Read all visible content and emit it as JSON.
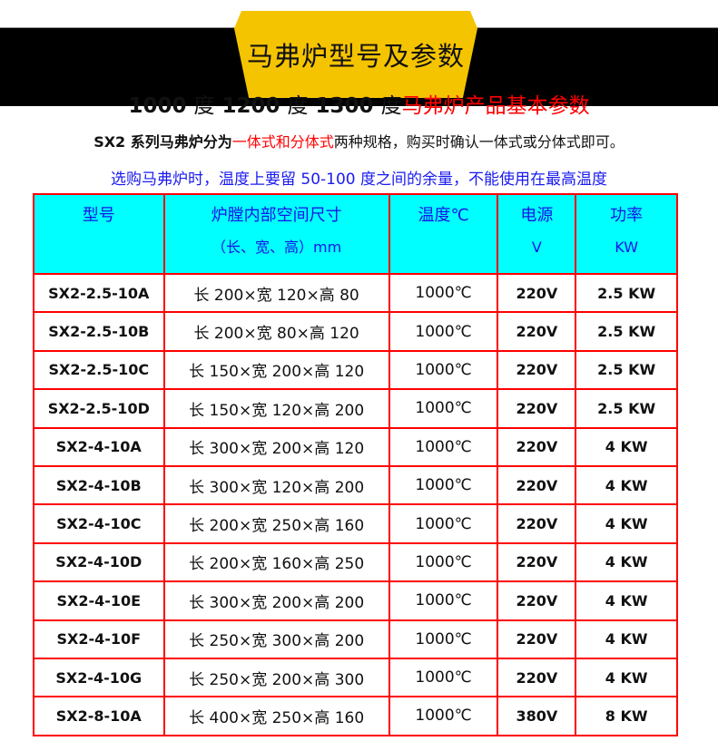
{
  "banner": {
    "title": "马弗炉型号及参数"
  },
  "headline": {
    "part1": "1000",
    "deg1": "度",
    "part2": "1200",
    "deg2": "度",
    "part3": "1300",
    "deg3": "度",
    "red": "马弗炉产品基本参数"
  },
  "note1": {
    "prefix": "SX2 系列马弗炉分为",
    "red": "一体式和分体式",
    "suffix": "两种规格，购买时确认一体式或分体式即可。"
  },
  "note2": "选购马弗炉时，温度上要留 50-100 度之间的余量，不能使用在最高温度",
  "table": {
    "headers": [
      {
        "l1": "型号",
        "l2": ""
      },
      {
        "l1": "炉膛内部空间尺寸",
        "l2": "（长、宽、高）mm"
      },
      {
        "l1": "温度℃",
        "l2": ""
      },
      {
        "l1": "电源",
        "l2": "V"
      },
      {
        "l1": "功率",
        "l2": "KW"
      }
    ],
    "rows": [
      [
        "SX2-2.5-10A",
        "长 200×宽 120×高 80",
        "1000℃",
        "220V",
        "2.5 KW"
      ],
      [
        "SX2-2.5-10B",
        "长 200×宽 80×高 120",
        "1000℃",
        "220V",
        "2.5 KW"
      ],
      [
        "SX2-2.5-10C",
        "长 150×宽 200×高 120",
        "1000℃",
        "220V",
        "2.5 KW"
      ],
      [
        "SX2-2.5-10D",
        "长 150×宽 120×高 200",
        "1000℃",
        "220V",
        "2.5 KW"
      ],
      [
        "SX2-4-10A",
        "长 300×宽 200×高 120",
        "1000℃",
        "220V",
        "4 KW"
      ],
      [
        "SX2-4-10B",
        "长 300×宽 120×高 200",
        "1000℃",
        "220V",
        "4 KW"
      ],
      [
        "SX2-4-10C",
        "长 200×宽 250×高 160",
        "1000℃",
        "220V",
        "4 KW"
      ],
      [
        "SX2-4-10D",
        "长 200×宽 160×高 250",
        "1000℃",
        "220V",
        "4 KW"
      ],
      [
        "SX2-4-10E",
        "长 300×宽 200×高 200",
        "1000℃",
        "220V",
        "4 KW"
      ],
      [
        "SX2-4-10F",
        "长 250×宽 300×高 200",
        "1000℃",
        "220V",
        "4 KW"
      ],
      [
        "SX2-4-10G",
        "长 250×宽 200×高 300",
        "1000℃",
        "220V",
        "4 KW"
      ],
      [
        "SX2-8-10A",
        "长 400×宽 250×高 160",
        "1000℃",
        "380V",
        "8 KW"
      ]
    ]
  },
  "colors": {
    "banner": "#f5c400",
    "header_bg": "#00ffff",
    "border": "#ff0000",
    "accent_red": "#ff0000",
    "blue": "#1a1af0"
  }
}
